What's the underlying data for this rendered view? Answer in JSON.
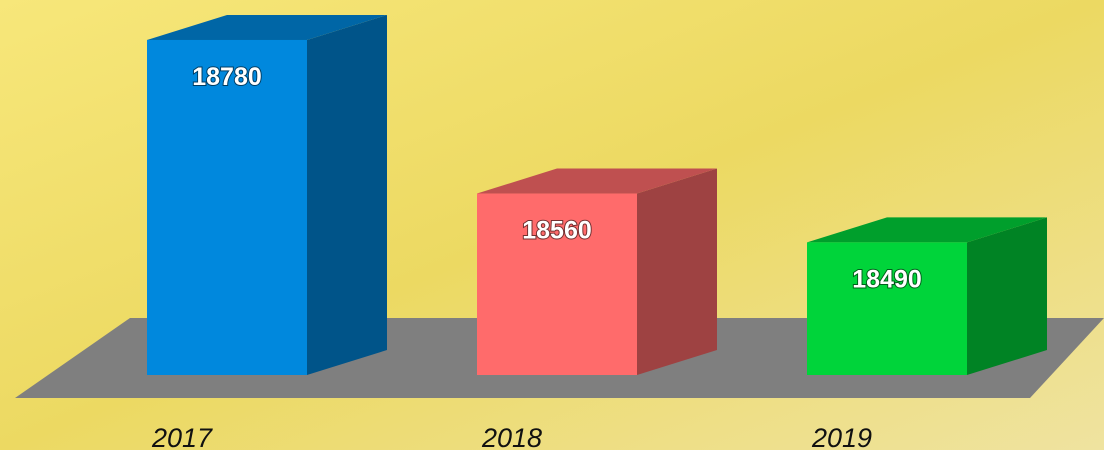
{
  "chart_data": {
    "type": "bar3d",
    "categories": [
      "2017",
      "2018",
      "2019"
    ],
    "values": [
      18780,
      18560,
      18490
    ],
    "colors": [
      "#0088dd",
      "#ff6b6b",
      "#00d43a"
    ],
    "ylim": [
      18300,
      18800
    ]
  }
}
